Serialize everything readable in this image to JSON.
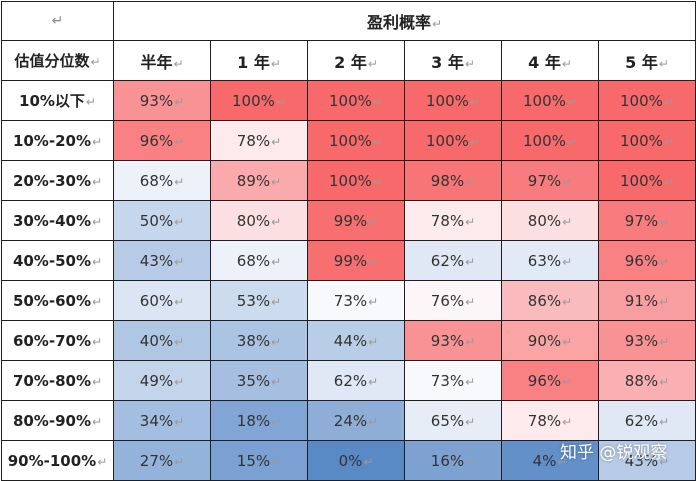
{
  "table": {
    "corner_mark": "↵",
    "title": "盈利概率",
    "row_header_label": "估值分位数",
    "return_mark": "↵",
    "columns": [
      "半年",
      "1 年",
      "2 年",
      "3 年",
      "4 年",
      "5 年"
    ],
    "rows": [
      {
        "label": "10%以下",
        "values": [
          "93%",
          "100%",
          "100%",
          "100%",
          "100%",
          "100%"
        ],
        "pct": [
          93,
          100,
          100,
          100,
          100,
          100
        ]
      },
      {
        "label": "10%-20%",
        "values": [
          "96%",
          "78%",
          "100%",
          "100%",
          "100%",
          "100%"
        ],
        "pct": [
          96,
          78,
          100,
          100,
          100,
          100
        ]
      },
      {
        "label": "20%-30%",
        "values": [
          "68%",
          "89%",
          "100%",
          "98%",
          "97%",
          "100%"
        ],
        "pct": [
          68,
          89,
          100,
          98,
          97,
          100
        ]
      },
      {
        "label": "30%-40%",
        "values": [
          "50%",
          "80%",
          "99%",
          "78%",
          "80%",
          "97%"
        ],
        "pct": [
          50,
          80,
          99,
          78,
          80,
          97
        ]
      },
      {
        "label": "40%-50%",
        "values": [
          "43%",
          "68%",
          "99%",
          "62%",
          "63%",
          "96%"
        ],
        "pct": [
          43,
          68,
          99,
          62,
          63,
          96
        ]
      },
      {
        "label": "50%-60%",
        "values": [
          "60%",
          "53%",
          "73%",
          "76%",
          "86%",
          "91%"
        ],
        "pct": [
          60,
          53,
          73,
          76,
          86,
          91
        ]
      },
      {
        "label": "60%-70%",
        "values": [
          "40%",
          "38%",
          "44%",
          "93%",
          "90%",
          "93%"
        ],
        "pct": [
          40,
          38,
          44,
          93,
          90,
          93
        ]
      },
      {
        "label": "70%-80%",
        "values": [
          "49%",
          "35%",
          "62%",
          "73%",
          "96%",
          "88%"
        ],
        "pct": [
          49,
          35,
          62,
          73,
          96,
          88
        ]
      },
      {
        "label": "80%-90%",
        "values": [
          "34%",
          "18%",
          "24%",
          "65%",
          "78%",
          "62%"
        ],
        "pct": [
          34,
          18,
          24,
          65,
          78,
          62
        ]
      },
      {
        "label": "90%-100%",
        "values": [
          "27%",
          "15%",
          "0%",
          "16%",
          "4%",
          "43%"
        ],
        "pct": [
          27,
          15,
          0,
          16,
          4,
          43
        ]
      }
    ],
    "colors": {
      "high": "#f8696b",
      "mid": "#fcfcff",
      "low": "#5a8ac6",
      "border": "#1f1f1f"
    }
  },
  "watermark": "知乎 @锐观察"
}
